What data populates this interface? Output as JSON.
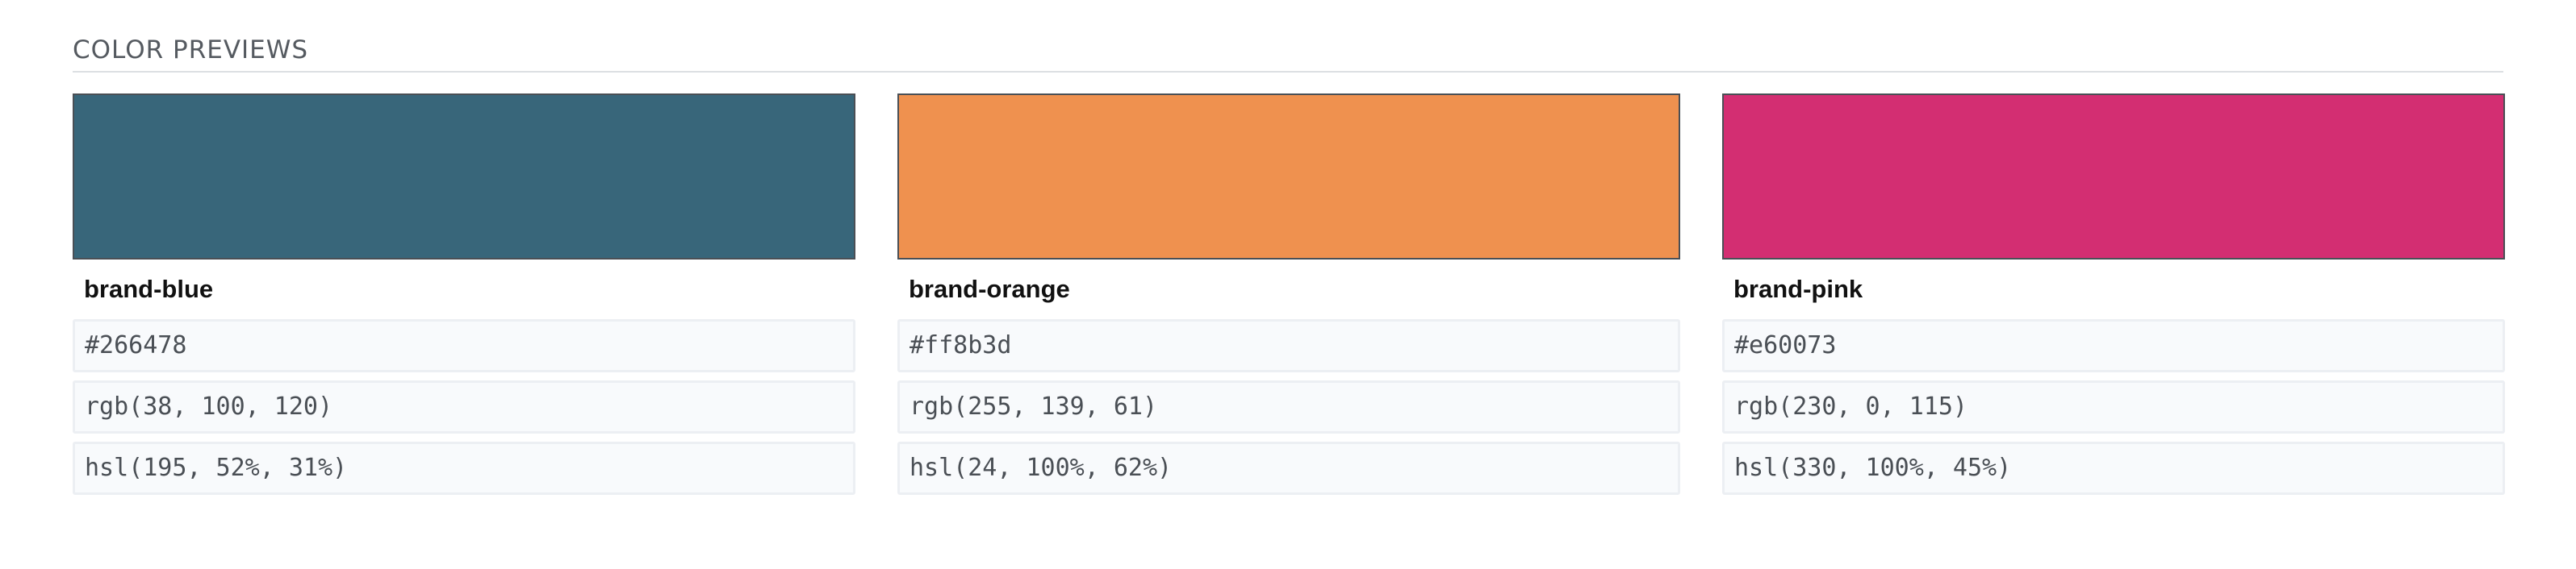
{
  "section": {
    "title": "COLOR PREVIEWS"
  },
  "colors": [
    {
      "name": "brand-blue",
      "swatch": "#38667a",
      "hex": "#266478",
      "rgb": "rgb(38, 100, 120)",
      "hsl": "hsl(195, 52%, 31%)"
    },
    {
      "name": "brand-orange",
      "swatch": "#ef914f",
      "hex": "#ff8b3d",
      "rgb": "rgb(255, 139, 61)",
      "hsl": "hsl(24, 100%, 62%)"
    },
    {
      "name": "brand-pink",
      "swatch": "#d32e72",
      "hex": "#e60073",
      "rgb": "rgb(230, 0, 115)",
      "hsl": "hsl(330, 100%, 45%)"
    }
  ]
}
